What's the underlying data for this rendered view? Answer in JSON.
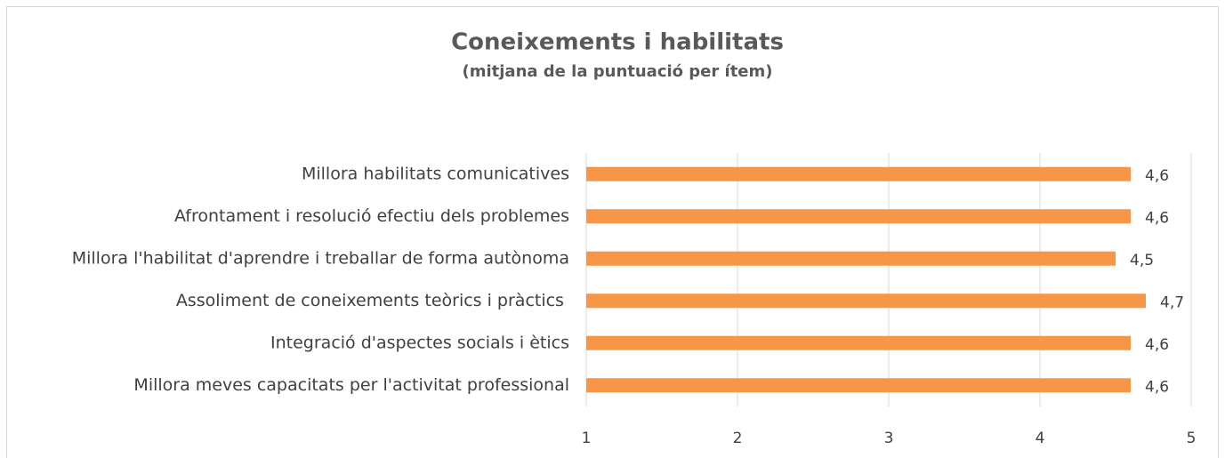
{
  "chart_data": {
    "type": "bar",
    "orientation": "horizontal",
    "title": "Coneixements i habilitats",
    "subtitle": "(mitjana de la puntuació per ítem)",
    "categories": [
      "Millora habilitats comunicatives",
      "Afrontament i resolució efectiu dels problemes",
      "Millora l'habilitat d'aprendre i treballar de forma autònoma",
      "Assoliment de coneixements teòrics i pràctics ",
      "Integració d'aspectes socials i ètics",
      "Millora meves capacitats per l'activitat professional"
    ],
    "values": [
      4.6,
      4.6,
      4.5,
      4.7,
      4.6,
      4.6
    ],
    "value_labels": [
      "4,6",
      "4,6",
      "4,5",
      "4,7",
      "4,6",
      "4,6"
    ],
    "color": "#f79646",
    "xlim": [
      1,
      5
    ],
    "xticks": [
      1,
      2,
      3,
      4,
      5
    ],
    "grid": true
  }
}
